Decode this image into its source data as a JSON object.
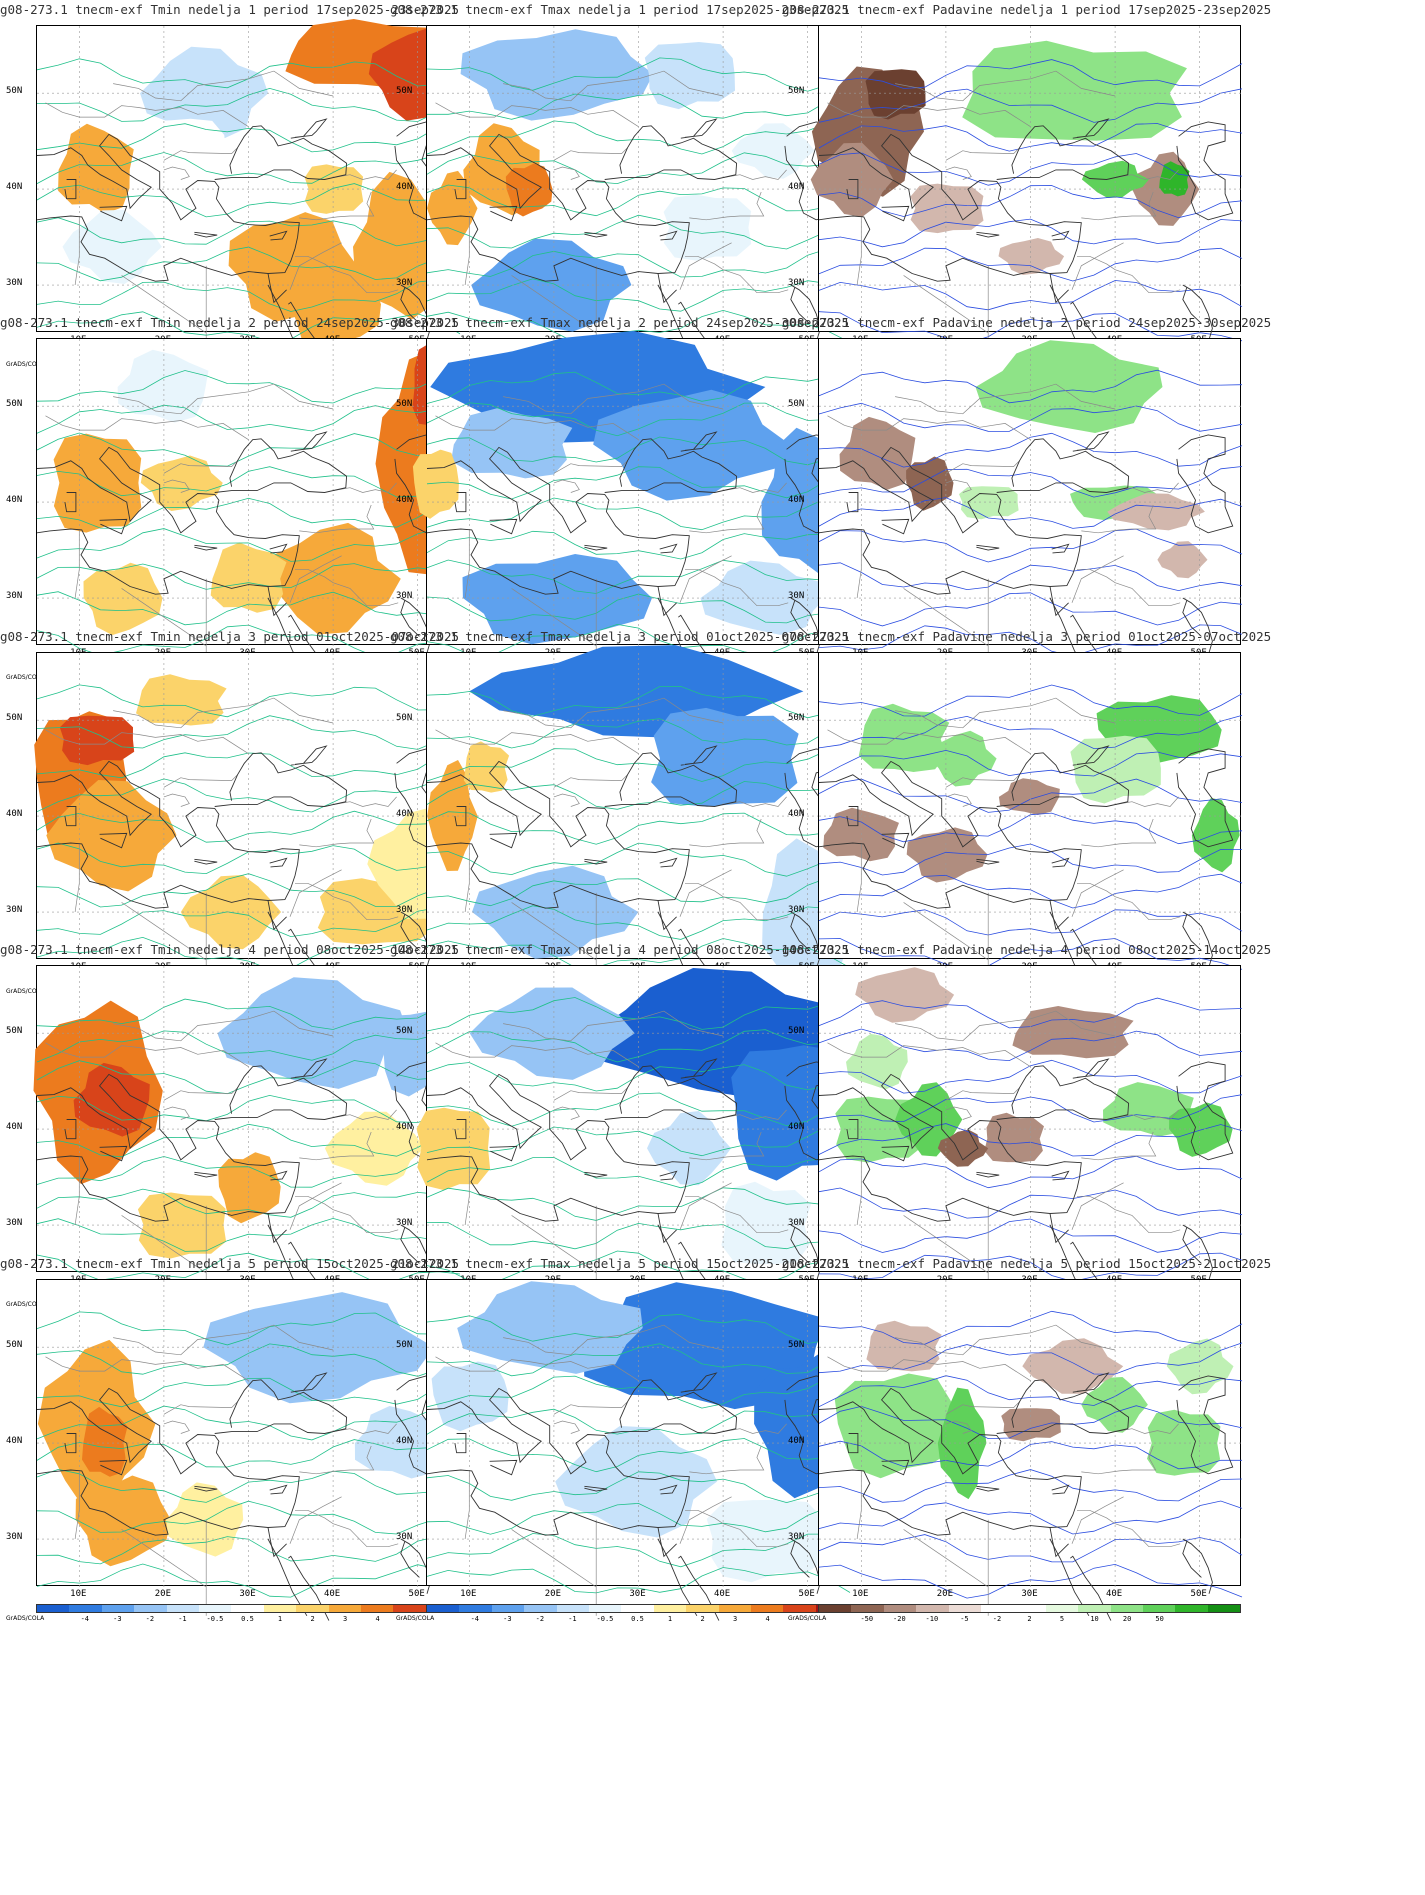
{
  "colorbars": {
    "temp": {
      "colors": [
        "#1a5fd0",
        "#2f7be0",
        "#5ea1ee",
        "#96c4f5",
        "#c7e2fa",
        "#e8f5fc",
        "#ffffff",
        "#fff0a0",
        "#fbd36a",
        "#f6a93a",
        "#ec7b1e",
        "#d8441a",
        "#a51212"
      ],
      "ticks": [
        "-4",
        "-3",
        "-2",
        "-1",
        "-0.5",
        "0.5",
        "1",
        "2",
        "3",
        "4"
      ]
    },
    "precip": {
      "colors": [
        "#6b4030",
        "#8e6553",
        "#b08d7f",
        "#d2b7ad",
        "#ecdcd6",
        "#ffffff",
        "#ffffff",
        "#e6fae0",
        "#bff0b4",
        "#8ee387",
        "#5fd15a",
        "#2fb52a",
        "#148f14"
      ],
      "ticks": [
        "-50",
        "-20",
        "-10",
        "-5",
        "-2",
        "2",
        "5",
        "10",
        "20",
        "50"
      ]
    }
  },
  "axes": {
    "y_labels": [
      "50N",
      "40N",
      "30N"
    ],
    "x_labels": [
      "10E",
      "20E",
      "30E",
      "40E",
      "50E"
    ],
    "credit": "GrADS/COLA"
  },
  "panels": [
    {
      "title": "g08-273.1 tnecm-exf Tmin nedelja 1 period 17sep2025-23sep2025",
      "var": "tmin",
      "week": 1
    },
    {
      "title": "g08-273.1 tnecm-exf Tmax nedelja 1 period 17sep2025-23sep2025",
      "var": "tmax",
      "week": 1
    },
    {
      "title": "g08-273.1 tnecm-exf Padavine nedelja 1 period 17sep2025-23sep2025",
      "var": "precip",
      "week": 1
    },
    {
      "title": "g08-273.1 tnecm-exf Tmin nedelja 2 period 24sep2025-30sep2025",
      "var": "tmin",
      "week": 2
    },
    {
      "title": "g08-273.1 tnecm-exf Tmax nedelja 2 period 24sep2025-30sep2025",
      "var": "tmax",
      "week": 2
    },
    {
      "title": "g08-273.1 tnecm-exf Padavine nedelja 2 period 24sep2025-30sep2025",
      "var": "precip",
      "week": 2
    },
    {
      "title": "g08-273.1 tnecm-exf Tmin nedelja 3 period 01oct2025-07oct2025",
      "var": "tmin",
      "week": 3
    },
    {
      "title": "g08-273.1 tnecm-exf Tmax nedelja 3 period 01oct2025-07oct2025",
      "var": "tmax",
      "week": 3
    },
    {
      "title": "g08-273.1 tnecm-exf Padavine nedelja 3 period 01oct2025-07oct2025",
      "var": "precip",
      "week": 3
    },
    {
      "title": "g08-273.1 tnecm-exf Tmin nedelja 4 period 08oct2025-14oct2025",
      "var": "tmin",
      "week": 4
    },
    {
      "title": "g08-273.1 tnecm-exf Tmax nedelja 4 period 08oct2025-14oct2025",
      "var": "tmax",
      "week": 4
    },
    {
      "title": "g08-273.1 tnecm-exf Padavine nedelja 4 period 08oct2025-14oct2025",
      "var": "precip",
      "week": 4
    },
    {
      "title": "g08-273.1 tnecm-exf Tmin nedelja 5 period 15oct2025-21oct2025",
      "var": "tmin",
      "week": 5
    },
    {
      "title": "g08-273.1 tnecm-exf Tmax nedelja 5 period 15oct2025-21oct2025",
      "var": "tmax",
      "week": 5
    },
    {
      "title": "g08-273.1 tnecm-exf Padavine nedelja 5 period 15oct2025-21oct2025",
      "var": "precip",
      "week": 5
    }
  ]
}
